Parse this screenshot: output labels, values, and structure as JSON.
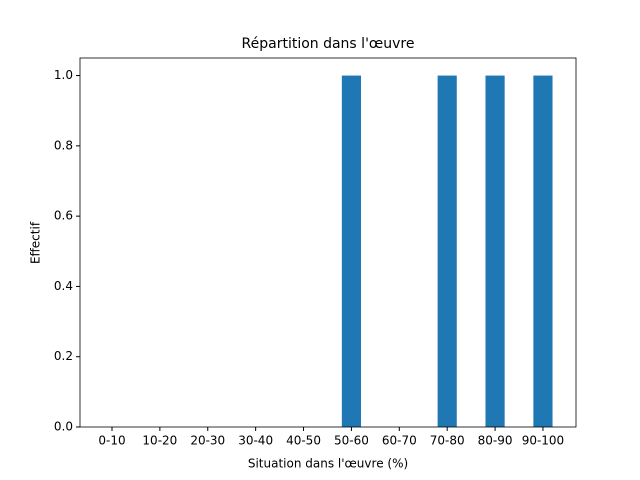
{
  "chart_data": {
    "type": "bar",
    "title": "Répartition dans l'œuvre",
    "x_label": "Situation dans l'œuvre (%)",
    "y_label": "Effectif",
    "categories": [
      "0-10",
      "10-20",
      "20-30",
      "30-40",
      "40-50",
      "50-60",
      "60-70",
      "70-80",
      "80-90",
      "90-100"
    ],
    "values": [
      0,
      0,
      0,
      0,
      0,
      1,
      0,
      1,
      1,
      1
    ],
    "color": "#1f77b4",
    "ylim": [
      0,
      1.05
    ],
    "yticks": [
      {
        "value": 0,
        "label": "0.0"
      },
      {
        "value": 0.2,
        "label": "0.2"
      },
      {
        "value": 0.4,
        "label": "0.4"
      },
      {
        "value": 0.6,
        "label": "0.6"
      },
      {
        "value": 0.8,
        "label": "0.8"
      },
      {
        "value": 1,
        "label": "1.0"
      }
    ],
    "grid": false
  }
}
